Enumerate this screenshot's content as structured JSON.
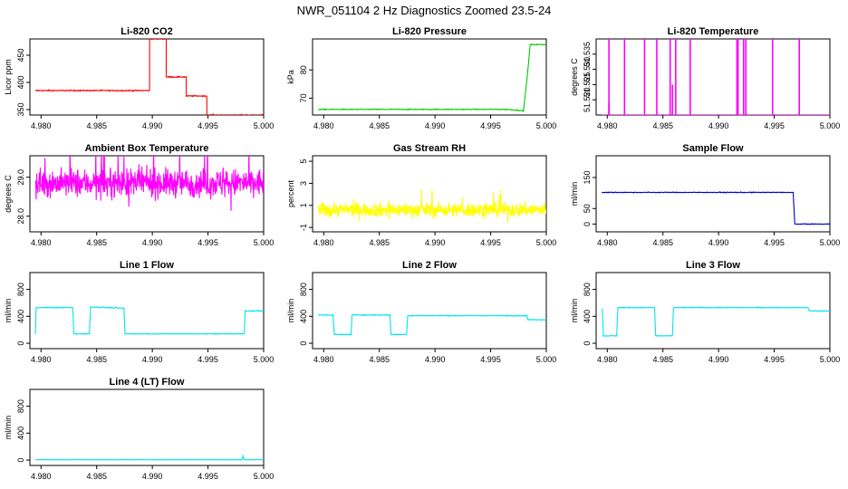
{
  "title": "NWR_051104  2 Hz Diagnostics Zoomed 23.5-24",
  "chart_data": [
    {
      "type": "line",
      "title": "Li-820 CO2",
      "ylabel": "Licor ppm",
      "color": "#ff0000",
      "xlim": [
        4.979,
        5.0
      ],
      "ylim": [
        340,
        480
      ],
      "x_ticks": [
        "4.980",
        "4.985",
        "4.990",
        "4.995",
        "5.000"
      ],
      "y_ticks": [
        {
          "v": 350,
          "label": "350"
        },
        {
          "v": 400,
          "label": "400"
        },
        {
          "v": 450,
          "label": "450"
        }
      ],
      "noise": 1.0,
      "x": [
        4.9795,
        4.98975,
        4.98975,
        4.99125,
        4.99125,
        4.99305,
        4.99305,
        4.9949,
        4.9949,
        5.0
      ],
      "y": [
        385,
        385,
        480,
        480,
        410,
        410,
        375,
        375,
        340,
        340
      ]
    },
    {
      "type": "line",
      "title": "Li-820 Pressure",
      "ylabel": "kPa",
      "color": "#00cc00",
      "xlim": [
        4.979,
        5.0
      ],
      "ylim": [
        64,
        91
      ],
      "x_ticks": [
        "4.980",
        "4.985",
        "4.990",
        "4.995",
        "5.000"
      ],
      "y_ticks": [
        {
          "v": 70,
          "label": "70"
        },
        {
          "v": 80,
          "label": "80"
        }
      ],
      "noise": 0.15,
      "x": [
        4.9795,
        4.99645,
        4.99795,
        4.99835,
        4.99855,
        5.0
      ],
      "y": [
        66,
        66,
        65.5,
        80,
        89,
        89
      ]
    },
    {
      "type": "line",
      "title": "Li-820 Temperature",
      "ylabel": "degrees C",
      "color": "#ff00ff",
      "xlim": [
        4.979,
        5.0
      ],
      "ylim": [
        51.515,
        51.54
      ],
      "x_ticks": [
        "4.980",
        "4.985",
        "4.990",
        "4.995",
        "5.000"
      ],
      "y_ticks": [
        {
          "v": 51.52,
          "label": "51.520"
        },
        {
          "v": 51.525,
          "label": "51.525"
        },
        {
          "v": 51.53,
          "label": "51.530"
        },
        {
          "v": 51.535,
          "label": "51.535"
        }
      ],
      "baseline": 51.515,
      "spikes": [
        [
          4.98015,
          51.54
        ],
        [
          4.98155,
          51.54
        ],
        [
          4.98335,
          51.54
        ],
        [
          4.98445,
          51.54
        ],
        [
          4.98565,
          51.54
        ],
        [
          4.98615,
          51.54
        ],
        [
          4.98745,
          51.54
        ],
        [
          4.99165,
          51.54
        ],
        [
          4.99175,
          51.54
        ],
        [
          4.99225,
          51.54
        ],
        [
          4.99245,
          51.54
        ],
        [
          4.99485,
          51.54
        ],
        [
          4.99725,
          51.54
        ],
        [
          4.98585,
          51.525
        ],
        [
          4.98015,
          51.519
        ]
      ],
      "x": [],
      "y": []
    },
    {
      "type": "line",
      "title": "Ambient Box Temperature",
      "ylabel": "degrees C",
      "color": "#ff00ff",
      "xlim": [
        4.979,
        5.0
      ],
      "ylim": [
        27.6,
        29.55
      ],
      "x_ticks": [
        "4.980",
        "4.985",
        "4.990",
        "4.995",
        "5.000"
      ],
      "y_ticks": [
        {
          "v": 28.0,
          "label": "28.0"
        },
        {
          "v": 29.0,
          "label": "29.0"
        }
      ],
      "noise_series": {
        "center": 28.85,
        "sd": 0.3
      },
      "x": [],
      "y": []
    },
    {
      "type": "line",
      "title": "Gas Stream RH",
      "ylabel": "percent",
      "color": "#ffff00",
      "xlim": [
        4.979,
        5.0
      ],
      "ylim": [
        -1.4,
        5.5
      ],
      "x_ticks": [
        "4.980",
        "4.985",
        "4.990",
        "4.995",
        "5.000"
      ],
      "y_ticks": [
        {
          "v": -1,
          "label": "-1"
        },
        {
          "v": 1,
          "label": "1"
        },
        {
          "v": 3,
          "label": "3"
        },
        {
          "v": 5,
          "label": "5"
        }
      ],
      "noise_series": {
        "center": 0.6,
        "sd": 0.55
      },
      "x": [],
      "y": []
    },
    {
      "type": "line",
      "title": "Sample Flow",
      "ylabel": "ml/min",
      "color": "#0000cc",
      "xlim": [
        4.979,
        5.0
      ],
      "ylim": [
        -25,
        220
      ],
      "x_ticks": [
        "4.980",
        "4.985",
        "4.990",
        "4.995",
        "5.000"
      ],
      "y_ticks": [
        {
          "v": 0,
          "label": "0"
        },
        {
          "v": 50,
          "label": "50"
        },
        {
          "v": 150,
          "label": "150"
        }
      ],
      "noise": 1.2,
      "x": [
        4.9795,
        4.9967,
        4.99685,
        5.0
      ],
      "y": [
        102,
        102,
        0,
        0
      ]
    },
    {
      "type": "line",
      "title": "Line 1 Flow",
      "ylabel": "ml/min",
      "color": "#00e5ee",
      "xlim": [
        4.979,
        5.0
      ],
      "ylim": [
        -80,
        1050
      ],
      "x_ticks": [
        "4.980",
        "4.985",
        "4.990",
        "4.995",
        "5.000"
      ],
      "y_ticks": [
        {
          "v": 0,
          "label": "0"
        },
        {
          "v": 400,
          "label": "400"
        },
        {
          "v": 800,
          "label": "800"
        }
      ],
      "noise": 6,
      "x": [
        4.9795,
        4.97955,
        4.98285,
        4.98295,
        4.98435,
        4.98445,
        4.98745,
        4.98755,
        4.99825,
        4.99835,
        5.0
      ],
      "y": [
        140,
        530,
        530,
        140,
        140,
        540,
        520,
        140,
        140,
        480,
        480
      ]
    },
    {
      "type": "line",
      "title": "Line 2 Flow",
      "ylabel": "ml/min",
      "color": "#00e5ee",
      "xlim": [
        4.979,
        5.0
      ],
      "ylim": [
        -80,
        1050
      ],
      "x_ticks": [
        "4.980",
        "4.985",
        "4.990",
        "4.995",
        "5.000"
      ],
      "y_ticks": [
        {
          "v": 0,
          "label": "0"
        },
        {
          "v": 400,
          "label": "400"
        },
        {
          "v": 800,
          "label": "800"
        }
      ],
      "noise": 6,
      "x": [
        4.9795,
        4.98085,
        4.98095,
        4.98245,
        4.98255,
        4.98595,
        4.98605,
        4.98745,
        4.98755,
        4.99825,
        4.99835,
        5.0
      ],
      "y": [
        420,
        420,
        130,
        130,
        420,
        420,
        130,
        130,
        410,
        410,
        350,
        350
      ]
    },
    {
      "type": "line",
      "title": "Line 3 Flow",
      "ylabel": "ml/min",
      "color": "#00e5ee",
      "xlim": [
        4.979,
        5.0
      ],
      "ylim": [
        -80,
        1050
      ],
      "x_ticks": [
        "4.980",
        "4.985",
        "4.990",
        "4.995",
        "5.000"
      ],
      "y_ticks": [
        {
          "v": 0,
          "label": "0"
        },
        {
          "v": 400,
          "label": "400"
        },
        {
          "v": 800,
          "label": "800"
        }
      ],
      "noise": 6,
      "x": [
        4.9795,
        4.97955,
        4.97965,
        4.98085,
        4.98095,
        4.98425,
        4.98435,
        4.98585,
        4.98595,
        4.99805,
        4.99815,
        5.0
      ],
      "y": [
        510,
        510,
        110,
        110,
        530,
        530,
        110,
        110,
        530,
        530,
        480,
        480
      ]
    },
    {
      "type": "line",
      "title": "Line 4 (LT) Flow",
      "ylabel": "ml/min",
      "color": "#00e5ee",
      "xlim": [
        4.979,
        5.0
      ],
      "ylim": [
        -80,
        1050
      ],
      "x_ticks": [
        "4.980",
        "4.985",
        "4.990",
        "4.995",
        "5.000"
      ],
      "y_ticks": [
        {
          "v": 0,
          "label": "0"
        },
        {
          "v": 400,
          "label": "400"
        },
        {
          "v": 800,
          "label": "800"
        }
      ],
      "noise": 3,
      "x": [
        4.9795,
        4.99805,
        4.99815,
        4.9982,
        4.9983,
        5.0
      ],
      "y": [
        5,
        5,
        60,
        20,
        5,
        5
      ]
    }
  ]
}
